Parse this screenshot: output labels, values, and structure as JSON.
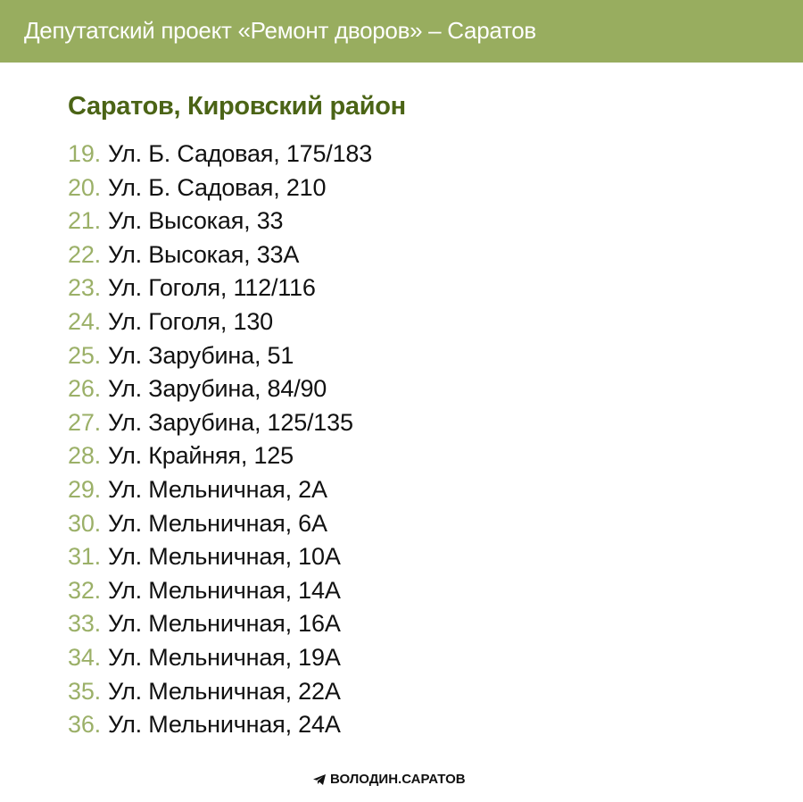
{
  "header": {
    "title": "Депутатский проект «Ремонт дворов» – Саратов",
    "background": "#98ad5f"
  },
  "section": {
    "title": "Саратов, Кировский район",
    "title_color": "#4b6416",
    "number_color": "#9bb068"
  },
  "items": [
    {
      "num": "19.",
      "address": "Ул. Б. Садовая, 175/183"
    },
    {
      "num": "20.",
      "address": "Ул. Б. Садовая, 210"
    },
    {
      "num": "21.",
      "address": "Ул. Высокая, 33"
    },
    {
      "num": "22.",
      "address": "Ул. Высокая, 33А"
    },
    {
      "num": "23.",
      "address": "Ул. Гоголя, 112/116"
    },
    {
      "num": "24.",
      "address": "Ул. Гоголя, 130"
    },
    {
      "num": "25.",
      "address": "Ул. Зарубина, 51"
    },
    {
      "num": "26.",
      "address": "Ул. Зарубина, 84/90"
    },
    {
      "num": "27.",
      "address": "Ул. Зарубина, 125/135"
    },
    {
      "num": "28.",
      "address": "Ул. Крайняя, 125"
    },
    {
      "num": "29.",
      "address": "Ул. Мельничная, 2А"
    },
    {
      "num": "30.",
      "address": "Ул. Мельничная, 6А"
    },
    {
      "num": "31.",
      "address": "Ул. Мельничная, 10А"
    },
    {
      "num": "32.",
      "address": "Ул. Мельничная, 14А"
    },
    {
      "num": "33.",
      "address": "Ул. Мельничная, 16А"
    },
    {
      "num": "34.",
      "address": "Ул. Мельничная, 19А"
    },
    {
      "num": "35.",
      "address": "Ул. Мельничная, 22А"
    },
    {
      "num": "36.",
      "address": "Ул. Мельничная, 24А"
    }
  ],
  "footer": {
    "icon": "telegram-icon",
    "label": "ВОЛОДИН.САРАТОВ"
  }
}
